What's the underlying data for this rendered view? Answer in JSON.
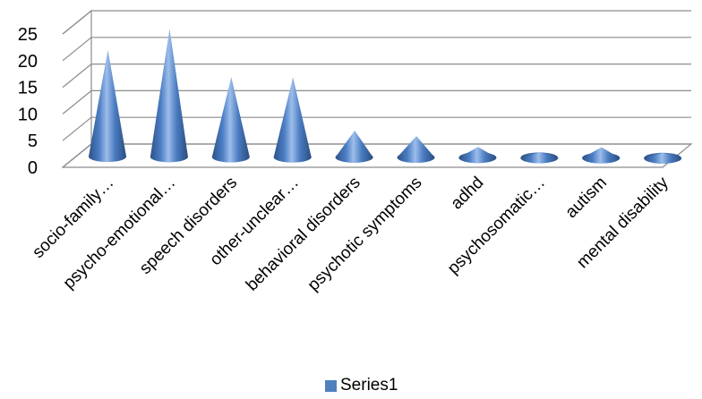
{
  "chart_data": {
    "type": "bar",
    "shape": "cone",
    "view": "3d-perspective",
    "title": "",
    "xlabel": "",
    "ylabel": "",
    "ylim": [
      0,
      25
    ],
    "yticks": [
      0,
      5,
      10,
      15,
      20,
      25
    ],
    "grid": true,
    "legend_position": "bottom",
    "categories": [
      "socio-family…",
      "psycho-emotional…",
      "speech disorders",
      "other-unclear…",
      "behavioral disorders",
      "psychotic symptoms",
      "adhd",
      "psychosomatic…",
      "autism",
      "mental disability"
    ],
    "series": [
      {
        "name": "Series1",
        "color": "#4F81BD",
        "values": [
          20,
          24,
          15,
          15,
          5,
          4,
          2,
          1,
          2,
          1
        ]
      }
    ]
  }
}
